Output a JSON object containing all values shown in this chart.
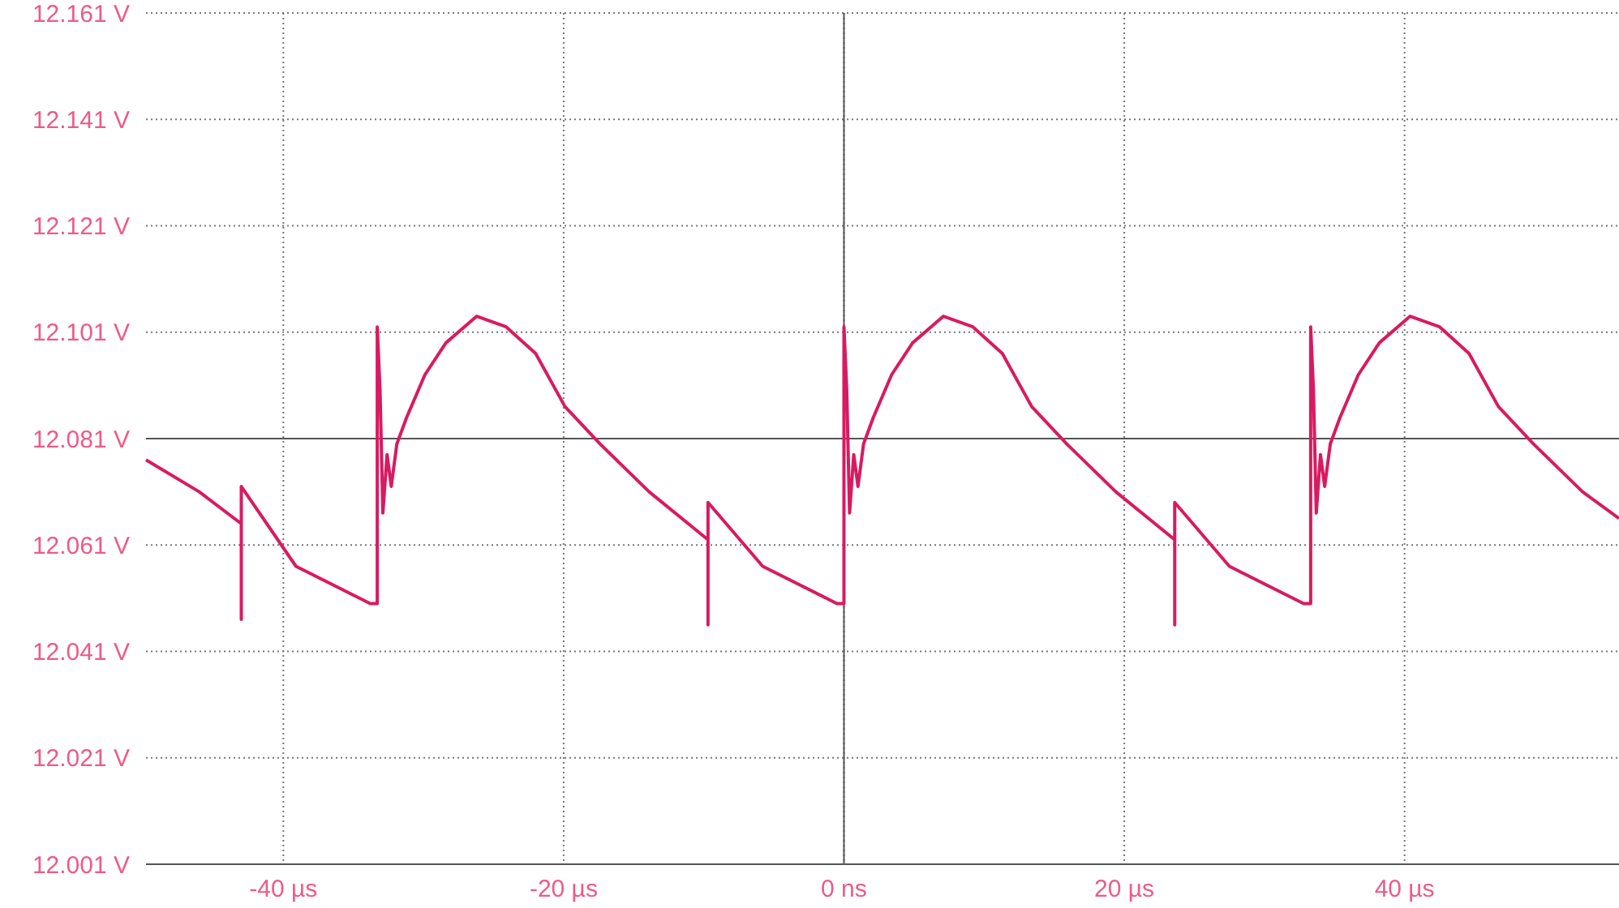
{
  "chart_data": {
    "type": "line",
    "xlim": [
      -49.8,
      55.3
    ],
    "ylim": [
      12.001,
      12.161
    ],
    "xticks": [
      {
        "value": -40,
        "label": "-40 µs"
      },
      {
        "value": -20,
        "label": "-20 µs"
      },
      {
        "value": 0,
        "label": "0 ns"
      },
      {
        "value": 20,
        "label": "20 µs"
      },
      {
        "value": 40,
        "label": "40 µs"
      }
    ],
    "yticks": [
      {
        "value": 12.001,
        "label": "12.001 V"
      },
      {
        "value": 12.021,
        "label": "12.021 V"
      },
      {
        "value": 12.041,
        "label": "12.041 V"
      },
      {
        "value": 12.061,
        "label": "12.061 V"
      },
      {
        "value": 12.081,
        "label": "12.081 V"
      },
      {
        "value": 12.101,
        "label": "12.101 V"
      },
      {
        "value": 12.121,
        "label": "12.121 V"
      },
      {
        "value": 12.141,
        "label": "12.141 V"
      },
      {
        "value": 12.161,
        "label": "12.161 V"
      }
    ],
    "grid": true,
    "marker": "none",
    "line_style": "solid",
    "series": [
      {
        "color": "#d81b60",
        "x": [
          -49.8,
          -46,
          -43,
          -43,
          -43,
          -39.1,
          -33.8,
          -33.3,
          -33.3,
          -33.1,
          -32.9,
          -32.6,
          -32.3,
          -31.9,
          -31.2,
          -29.9,
          -28.4,
          -26.2,
          -24.1,
          -22,
          -19.9,
          -17.4,
          -13.9,
          -9.7,
          -9.7,
          -9.7,
          -5.8,
          -0.5,
          0,
          0,
          0.2,
          0.4,
          0.7,
          1.0,
          1.4,
          2.1,
          3.4,
          4.9,
          7.1,
          9.2,
          11.3,
          13.4,
          15.9,
          19.4,
          23.6,
          23.6,
          23.6,
          27.5,
          32.8,
          33.3,
          33.3,
          33.5,
          33.7,
          34.0,
          34.3,
          34.7,
          35.4,
          36.7,
          38.2,
          40.4,
          42.5,
          44.6,
          46.7,
          49.2,
          52.7,
          55.3
        ],
        "values": [
          12.077,
          12.071,
          12.065,
          12.047,
          12.072,
          12.057,
          12.05,
          12.05,
          12.102,
          12.09,
          12.067,
          12.078,
          12.072,
          12.08,
          12.085,
          12.093,
          12.099,
          12.104,
          12.102,
          12.097,
          12.087,
          12.08,
          12.071,
          12.062,
          12.046,
          12.069,
          12.057,
          12.05,
          12.05,
          12.102,
          12.09,
          12.067,
          12.078,
          12.072,
          12.08,
          12.085,
          12.093,
          12.099,
          12.104,
          12.102,
          12.097,
          12.087,
          12.08,
          12.071,
          12.062,
          12.046,
          12.069,
          12.057,
          12.05,
          12.05,
          12.102,
          12.09,
          12.067,
          12.078,
          12.072,
          12.08,
          12.085,
          12.093,
          12.099,
          12.104,
          12.102,
          12.097,
          12.087,
          12.08,
          12.071,
          12.066
        ]
      }
    ]
  }
}
